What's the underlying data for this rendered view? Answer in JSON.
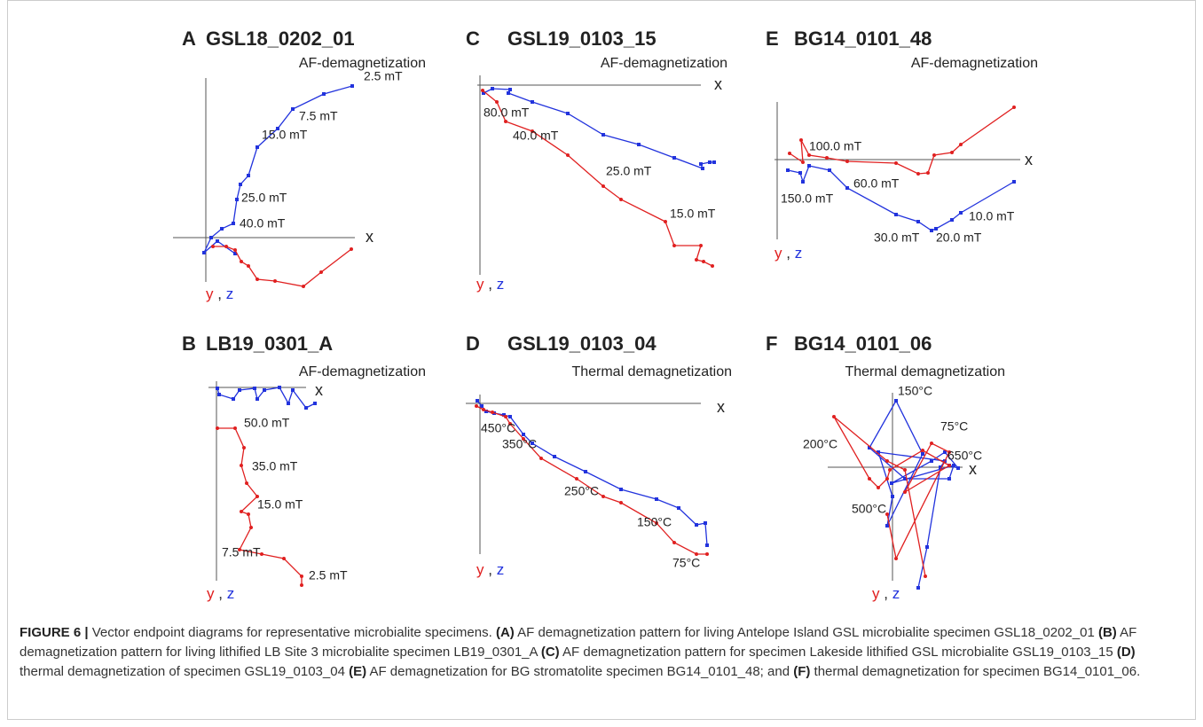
{
  "panels": [
    {
      "letter": "A",
      "title": "GSL18_0202_01",
      "method": "AF-demagnetization",
      "axis": "x",
      "y": "y",
      "sep": ",",
      "z": "z",
      "steps": [
        "2.5 mT",
        "7.5 mT",
        "15.0 mT",
        "25.0 mT",
        "40.0 mT"
      ]
    },
    {
      "letter": "C",
      "title": "GSL19_0103_15",
      "method": "AF-demagnetization",
      "axis": "x",
      "y": "y",
      "sep": ",",
      "z": "z",
      "steps": [
        "80.0 mT",
        "40.0 mT",
        "25.0 mT",
        "15.0 mT"
      ]
    },
    {
      "letter": "E",
      "title": "BG14_0101_48",
      "method": "AF-demagnetization",
      "axis": "x",
      "y": "y",
      "sep": ",",
      "z": "z",
      "steps": [
        "100.0 mT",
        "150.0 mT",
        "60.0 mT",
        "10.0 mT",
        "30.0 mT",
        "20.0 mT"
      ]
    },
    {
      "letter": "B",
      "title": "LB19_0301_A",
      "method": "AF-demagnetization",
      "axis": "x",
      "y": "y",
      "sep": ",",
      "z": "z",
      "steps": [
        "50.0 mT",
        "35.0 mT",
        "15.0 mT",
        "7.5 mT",
        "2.5 mT"
      ]
    },
    {
      "letter": "D",
      "title": "GSL19_0103_04",
      "method": "Thermal demagnetization",
      "axis": "x",
      "y": "y",
      "sep": ",",
      "z": "z",
      "steps": [
        "450°C",
        "350°C",
        "250°C",
        "150°C",
        "75°C"
      ]
    },
    {
      "letter": "F",
      "title": "BG14_0101_06",
      "method": "Thermal demagnetization",
      "axis": "x",
      "y": "y",
      "sep": ",",
      "z": "z",
      "steps": [
        "150°C",
        "75°C",
        "200°C",
        "650°C",
        "500°C"
      ]
    }
  ],
  "caption": {
    "label": "FIGURE 6 |",
    "lead": "Vector endpoint diagrams for representative microbialite specimens.",
    "items": [
      {
        "tag": "(A)",
        "text": "AF demagnetization pattern for living Antelope Island GSL microbialite specimen GSL18_0202_01"
      },
      {
        "tag": "(B)",
        "text": "AF demagnetization pattern for living lithified LB Site 3 microbialite specimen LB19_0301_A"
      },
      {
        "tag": "(C)",
        "text": "AF demagnetization pattern for specimen Lakeside lithified GSL microbialite GSL19_0103_15"
      },
      {
        "tag": "(D)",
        "text": "thermal demagnetization of specimen GSL19_0103_04"
      },
      {
        "tag": "(E)",
        "text": "AF demagnetization for BG stromatolite specimen BG14_0101_48; and"
      },
      {
        "tag": "(F)",
        "text": "thermal demagnetization for specimen BG14_0101_06."
      }
    ]
  }
}
